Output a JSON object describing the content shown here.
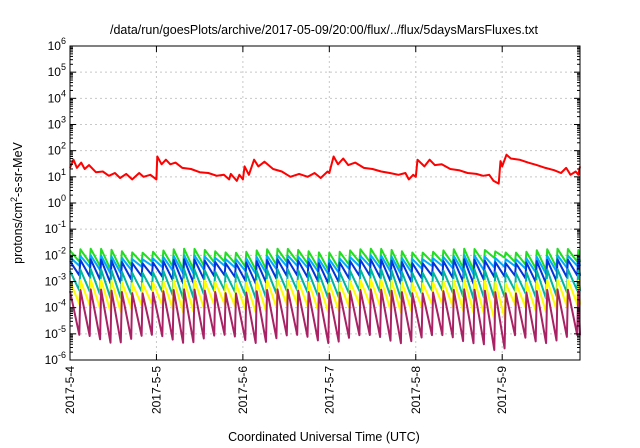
{
  "chart_data": {
    "type": "line",
    "title": "/data/run/goesPlots/archive/2017-05-09/20:00/flux/../flux/5daysMarsFluxes.txt",
    "xlabel": "Coordinated Universal Time (UTC)",
    "ylabel": {
      "base": "protons/cm",
      "sup": "2",
      "rest": "-s-sr-MeV"
    },
    "yscale": "log",
    "ylim": [
      1e-06,
      1000000.0
    ],
    "xlim": [
      0,
      5.9
    ],
    "grid": true,
    "x_ticks": [
      {
        "x": 0,
        "label": "2017-5-4"
      },
      {
        "x": 1,
        "label": "2017-5-5"
      },
      {
        "x": 2,
        "label": "2017-5-6"
      },
      {
        "x": 3,
        "label": "2017-5-7"
      },
      {
        "x": 4,
        "label": "2017-5-8"
      },
      {
        "x": 5,
        "label": "2017-5-9"
      }
    ],
    "y_ticks": [
      {
        "exp": "-6"
      },
      {
        "exp": "-5"
      },
      {
        "exp": "-4"
      },
      {
        "exp": "-3"
      },
      {
        "exp": "-2"
      },
      {
        "exp": "-1"
      },
      {
        "exp": "0"
      },
      {
        "exp": "1"
      },
      {
        "exp": "2"
      },
      {
        "exp": "3"
      },
      {
        "exp": "4"
      },
      {
        "exp": "5"
      },
      {
        "exp": "6"
      }
    ],
    "series": [
      {
        "color": "#ff0000",
        "values": [
          {
            "x": 0,
            "y": 22
          },
          {
            "x": 0.04,
            "y": 45
          },
          {
            "x": 0.08,
            "y": 22
          },
          {
            "x": 0.13,
            "y": 35
          },
          {
            "x": 0.17,
            "y": 20
          },
          {
            "x": 0.22,
            "y": 28
          },
          {
            "x": 0.3,
            "y": 15
          },
          {
            "x": 0.38,
            "y": 16
          },
          {
            "x": 0.45,
            "y": 11
          },
          {
            "x": 0.52,
            "y": 14
          },
          {
            "x": 0.58,
            "y": 9
          },
          {
            "x": 0.65,
            "y": 13
          },
          {
            "x": 0.72,
            "y": 8
          },
          {
            "x": 0.8,
            "y": 14
          },
          {
            "x": 0.85,
            "y": 10
          },
          {
            "x": 0.93,
            "y": 12
          },
          {
            "x": 1.0,
            "y": 8
          },
          {
            "x": 1.01,
            "y": 60
          },
          {
            "x": 1.06,
            "y": 30
          },
          {
            "x": 1.11,
            "y": 45
          },
          {
            "x": 1.16,
            "y": 30
          },
          {
            "x": 1.22,
            "y": 35
          },
          {
            "x": 1.3,
            "y": 22
          },
          {
            "x": 1.4,
            "y": 20
          },
          {
            "x": 1.5,
            "y": 15
          },
          {
            "x": 1.6,
            "y": 14
          },
          {
            "x": 1.7,
            "y": 11
          },
          {
            "x": 1.78,
            "y": 12
          },
          {
            "x": 1.84,
            "y": 8
          },
          {
            "x": 1.86,
            "y": 13
          },
          {
            "x": 1.93,
            "y": 7
          },
          {
            "x": 1.96,
            "y": 12
          },
          {
            "x": 2.0,
            "y": 8
          },
          {
            "x": 2.02,
            "y": 25
          },
          {
            "x": 2.07,
            "y": 12
          },
          {
            "x": 2.13,
            "y": 45
          },
          {
            "x": 2.18,
            "y": 25
          },
          {
            "x": 2.25,
            "y": 38
          },
          {
            "x": 2.35,
            "y": 20
          },
          {
            "x": 2.45,
            "y": 16
          },
          {
            "x": 2.55,
            "y": 10
          },
          {
            "x": 2.65,
            "y": 13
          },
          {
            "x": 2.75,
            "y": 10
          },
          {
            "x": 2.83,
            "y": 14
          },
          {
            "x": 2.9,
            "y": 9
          },
          {
            "x": 2.98,
            "y": 16
          },
          {
            "x": 3.0,
            "y": 14
          },
          {
            "x": 3.05,
            "y": 60
          },
          {
            "x": 3.1,
            "y": 30
          },
          {
            "x": 3.16,
            "y": 50
          },
          {
            "x": 3.22,
            "y": 28
          },
          {
            "x": 3.3,
            "y": 35
          },
          {
            "x": 3.4,
            "y": 22
          },
          {
            "x": 3.5,
            "y": 20
          },
          {
            "x": 3.6,
            "y": 16
          },
          {
            "x": 3.7,
            "y": 14
          },
          {
            "x": 3.8,
            "y": 12
          },
          {
            "x": 3.88,
            "y": 14
          },
          {
            "x": 3.92,
            "y": 8
          },
          {
            "x": 3.97,
            "y": 12
          },
          {
            "x": 4.0,
            "y": 10
          },
          {
            "x": 4.02,
            "y": 45
          },
          {
            "x": 4.1,
            "y": 25
          },
          {
            "x": 4.16,
            "y": 45
          },
          {
            "x": 4.22,
            "y": 28
          },
          {
            "x": 4.3,
            "y": 30
          },
          {
            "x": 4.4,
            "y": 20
          },
          {
            "x": 4.5,
            "y": 18
          },
          {
            "x": 4.6,
            "y": 14
          },
          {
            "x": 4.7,
            "y": 13
          },
          {
            "x": 4.78,
            "y": 11
          },
          {
            "x": 4.85,
            "y": 12
          },
          {
            "x": 4.9,
            "y": 7
          },
          {
            "x": 4.96,
            "y": 5.5
          },
          {
            "x": 4.98,
            "y": 40
          },
          {
            "x": 5.0,
            "y": 25
          },
          {
            "x": 5.05,
            "y": 70
          },
          {
            "x": 5.1,
            "y": 50
          },
          {
            "x": 5.2,
            "y": 45
          },
          {
            "x": 5.3,
            "y": 35
          },
          {
            "x": 5.4,
            "y": 28
          },
          {
            "x": 5.5,
            "y": 22
          },
          {
            "x": 5.6,
            "y": 18
          },
          {
            "x": 5.68,
            "y": 14
          },
          {
            "x": 5.74,
            "y": 22
          },
          {
            "x": 5.79,
            "y": 12
          },
          {
            "x": 5.85,
            "y": 16
          },
          {
            "x": 5.88,
            "y": 12
          },
          {
            "x": 5.9,
            "y": 25
          }
        ]
      },
      {
        "color": "#22dd22",
        "base": [
          0.005,
          0.018
        ],
        "dropMin": 0.009
      },
      {
        "color": "#00aaff",
        "base": [
          0.0035,
          0.01
        ],
        "dropMin": 0.0035
      },
      {
        "color": "#0033dd",
        "base": [
          0.0015,
          0.007
        ],
        "dropMin": 0.0015
      },
      {
        "color": "#00b5a0",
        "base": [
          0.0004,
          0.003
        ],
        "dropMin": 0.0002
      },
      {
        "color": "#ffff00",
        "base": [
          0.00012,
          0.0012
        ],
        "dropMin": 1.2e-05
      },
      {
        "color": "#aa2266",
        "base": [
          8e-06,
          0.0005
        ],
        "dropMin": 9e-07
      }
    ]
  }
}
